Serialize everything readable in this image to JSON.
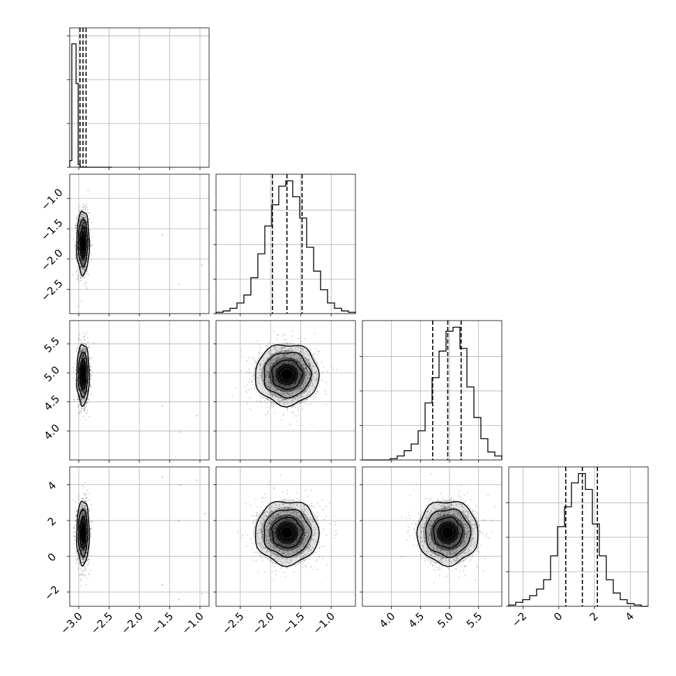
{
  "chart_data": {
    "type": "corner",
    "grid": true,
    "params": [
      {
        "range": [
          -3.15,
          -0.85
        ],
        "ticks": [
          -3.0,
          -2.5,
          -2.0,
          -1.5,
          -1.0
        ],
        "tick_labels": [
          "−3.0",
          "−2.5",
          "−2.0",
          "−1.5",
          "−1.0"
        ],
        "mean": -2.93,
        "sd": 0.05,
        "quantiles": [
          -2.98,
          -2.93,
          -2.88
        ],
        "hist_counts": [
          0.05,
          0.93,
          0.93,
          0.63,
          0.02,
          0.0,
          0.0,
          0.0,
          0.0,
          0.0,
          0.0,
          0.0,
          0.0,
          0.0,
          0.0,
          0.0,
          0.0,
          0.0,
          0.0,
          0.0
        ],
        "hist_ticks": [
          0.0,
          0.33,
          0.66,
          0.99
        ],
        "outliers": [
          [
            -1.62,
            -1.6
          ],
          [
            -1.35,
            -2.42
          ],
          [
            -0.97,
            -2.1
          ],
          [
            -1.62,
            4.43
          ],
          [
            -1.32,
            3.98
          ],
          [
            -1.05,
            4.26
          ],
          [
            -1.35,
            1.98
          ],
          [
            -0.92,
            2.38
          ]
        ]
      },
      {
        "range": [
          -2.9,
          -0.6
        ],
        "ticks": [
          -2.5,
          -2.0,
          -1.5,
          -1.0
        ],
        "tick_labels": [
          "−2.5",
          "−2.0",
          "−1.5",
          "−1.0"
        ],
        "ytick_labels": [
          "−2.5",
          "−2.0",
          "−1.5",
          "−1.0"
        ],
        "mean": -1.73,
        "sd": 0.25,
        "quantiles": [
          -1.97,
          -1.73,
          -1.48
        ],
        "hist_counts": [
          0.01,
          0.02,
          0.04,
          0.08,
          0.14,
          0.27,
          0.45,
          0.66,
          0.82,
          0.96,
          1.0,
          0.88,
          0.72,
          0.5,
          0.32,
          0.18,
          0.08,
          0.04,
          0.02,
          0.01
        ]
      },
      {
        "range": [
          3.5,
          5.9
        ],
        "ticks": [
          4.0,
          4.5,
          5.0,
          5.5
        ],
        "tick_labels": [
          "4.0",
          "4.5",
          "5.0",
          "5.5"
        ],
        "ytick_labels": [
          "4.0",
          "4.5",
          "5.0",
          "5.5"
        ],
        "mean": 4.97,
        "sd": 0.25,
        "quantiles": [
          4.71,
          4.97,
          5.2
        ],
        "hist_counts": [
          0.0,
          0.0,
          0.0,
          0.0,
          0.01,
          0.03,
          0.07,
          0.12,
          0.22,
          0.43,
          0.62,
          0.82,
          0.97,
          1.0,
          0.84,
          0.55,
          0.32,
          0.16,
          0.06,
          0.03
        ]
      },
      {
        "range": [
          -2.8,
          5.0
        ],
        "ticks": [
          -2,
          0,
          2,
          4
        ],
        "tick_labels": [
          "−2",
          "0",
          "2",
          "4"
        ],
        "ytick_labels": [
          "−2",
          "0",
          "2",
          "4"
        ],
        "mean": 1.32,
        "sd": 0.85,
        "quantiles": [
          0.39,
          1.32,
          2.16
        ],
        "hist_counts": [
          0.01,
          0.03,
          0.05,
          0.08,
          0.13,
          0.2,
          0.38,
          0.6,
          0.75,
          0.93,
          1.0,
          0.88,
          0.62,
          0.38,
          0.2,
          0.1,
          0.05,
          0.02,
          0.01,
          0.0
        ]
      }
    ]
  }
}
